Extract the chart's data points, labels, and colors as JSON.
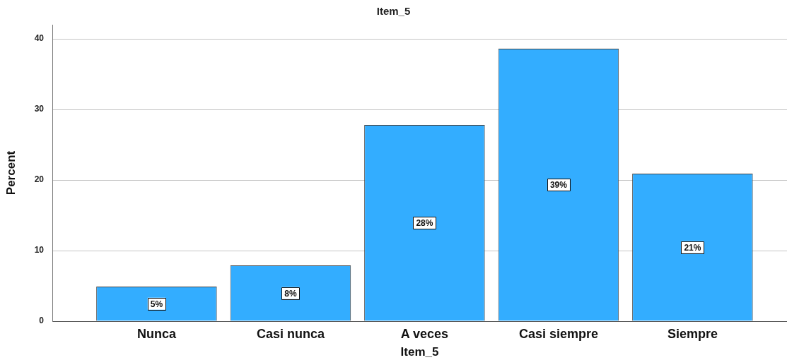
{
  "chart_data": {
    "type": "bar",
    "title": "Item_5",
    "xlabel": "Item_5",
    "ylabel": "Percent",
    "categories": [
      "Nunca",
      "Casi nunca",
      "A veces",
      "Casi siempre",
      "Siempre"
    ],
    "values": [
      4.9,
      7.9,
      27.8,
      38.6,
      20.9
    ],
    "value_labels": [
      "5%",
      "8%",
      "28%",
      "39%",
      "21%"
    ],
    "color": "#33adff",
    "ylim": [
      0,
      42
    ],
    "yticks": [
      0,
      10,
      20,
      30,
      40
    ],
    "grid": "y"
  }
}
